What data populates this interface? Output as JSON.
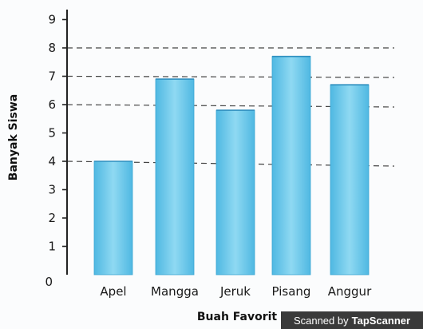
{
  "chart_data": {
    "type": "bar",
    "categories": [
      "Apel",
      "Mangga",
      "Jeruk",
      "Pisang",
      "Anggur"
    ],
    "values": [
      4,
      6.9,
      5.8,
      7.7,
      6.7
    ],
    "xlabel": "Buah Favorit",
    "ylabel": "Banyak Siswa",
    "ylim": [
      0,
      9
    ],
    "yticks": [
      "0",
      "1",
      "2",
      "3",
      "4",
      "5",
      "6",
      "7",
      "8",
      "9"
    ],
    "reference_lines": [
      4,
      6,
      7,
      8
    ],
    "bar_color": "#5fc3e8",
    "grid": false
  },
  "watermark": {
    "prefix": "Scanned by",
    "brand": "TapScanner"
  }
}
